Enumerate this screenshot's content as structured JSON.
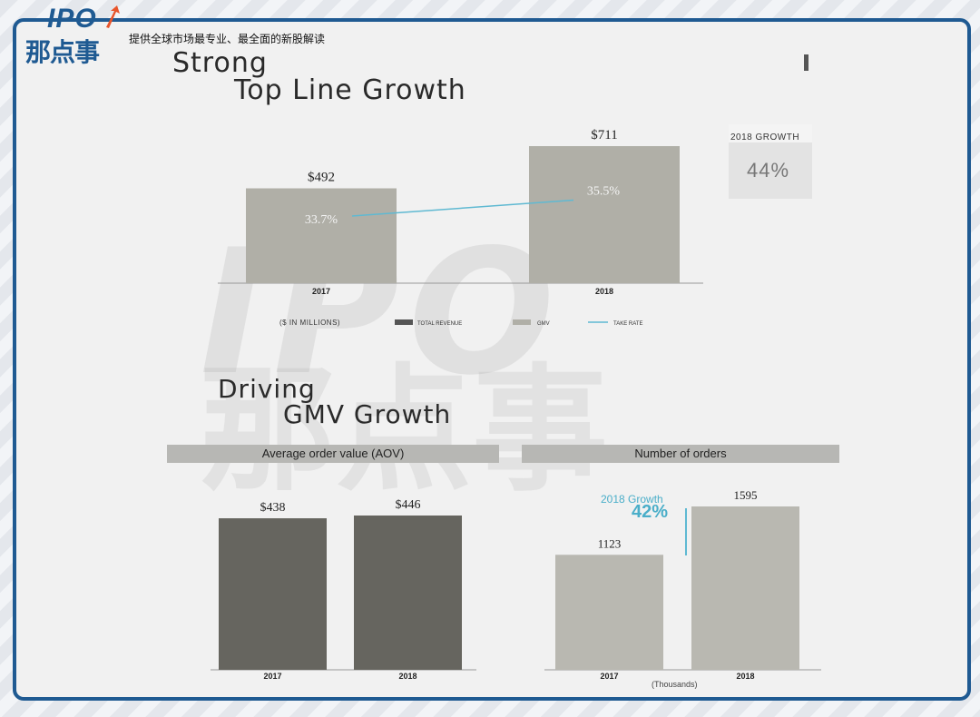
{
  "header": {
    "logo_text": "IPO",
    "logo_cn": "那点事",
    "tagline": "提供全球市场最专业、最全面的新股解读"
  },
  "section1": {
    "title_line1": "Strong",
    "title_line2": "Top Line Growth",
    "growth_label": "2018 GROWTH",
    "growth_value": "44%"
  },
  "section2": {
    "title_line1": "Driving",
    "title_line2": "GMV Growth",
    "aov_header": "Average order value (AOV)",
    "orders_header": "Number of orders",
    "growth_label": "2018 Growth",
    "growth_value": "42%",
    "units_note": "(Thousands)"
  },
  "colors": {
    "frame": "#1f5a92",
    "gmv": "#b0afa7",
    "aov": "#66655f",
    "orders": "#b9b8b1",
    "take_rate": "#5fb9d2"
  },
  "chart_data": [
    {
      "type": "bar",
      "title": "Strong Top Line Growth",
      "categories": [
        "2017",
        "2018"
      ],
      "series": [
        {
          "name": "GMV",
          "values": [
            492,
            711
          ],
          "labels": [
            "$492",
            "$711"
          ]
        },
        {
          "name": "TAKE RATE",
          "type": "line",
          "values": [
            33.7,
            35.5
          ],
          "labels": [
            "33.7%",
            "35.5%"
          ]
        }
      ],
      "legend": [
        "($ IN MILLIONS)",
        "TOTAL REVENUE",
        "GMV",
        "TAKE RATE"
      ],
      "legend_placement": "bottom"
    },
    {
      "type": "bar",
      "title": "Average order value (AOV)",
      "categories": [
        "2017",
        "2018"
      ],
      "values": [
        438,
        446
      ],
      "labels": [
        "$438",
        "$446"
      ]
    },
    {
      "type": "bar",
      "title": "Number of orders",
      "categories": [
        "2017",
        "2018"
      ],
      "values": [
        1123,
        1595
      ],
      "labels": [
        "1123",
        "1595"
      ],
      "xlabel": "(Thousands)"
    }
  ]
}
